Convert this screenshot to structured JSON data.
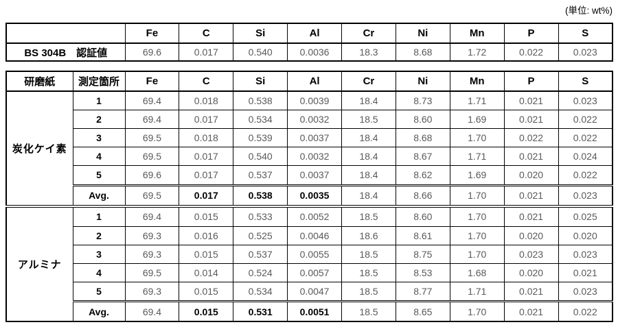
{
  "unit_label": "(単位: wt%)",
  "reference_table": {
    "columns": [
      "Fe",
      "C",
      "Si",
      "Al",
      "Cr",
      "Ni",
      "Mn",
      "P",
      "S"
    ],
    "row_label": "BS 304B　認証値",
    "values": [
      "69.6",
      "0.017",
      "0.540",
      "0.0036",
      "18.3",
      "8.68",
      "1.72",
      "0.022",
      "0.023"
    ]
  },
  "measurement_table": {
    "paper_header": "研磨紙",
    "location_header": "測定箇所",
    "columns": [
      "Fe",
      "C",
      "Si",
      "Al",
      "Cr",
      "Ni",
      "Mn",
      "P",
      "S"
    ],
    "avg_bold_columns": [
      1,
      2,
      3
    ],
    "sections": [
      {
        "paper": "炭化ケイ素",
        "rows": [
          {
            "label": "1",
            "avg": false,
            "values": [
              "69.4",
              "0.018",
              "0.538",
              "0.0039",
              "18.4",
              "8.73",
              "1.71",
              "0.021",
              "0.023"
            ]
          },
          {
            "label": "2",
            "avg": false,
            "values": [
              "69.4",
              "0.017",
              "0.534",
              "0.0032",
              "18.5",
              "8.60",
              "1.69",
              "0.021",
              "0.022"
            ]
          },
          {
            "label": "3",
            "avg": false,
            "values": [
              "69.5",
              "0.018",
              "0.539",
              "0.0037",
              "18.4",
              "8.68",
              "1.70",
              "0.022",
              "0.022"
            ]
          },
          {
            "label": "4",
            "avg": false,
            "values": [
              "69.5",
              "0.017",
              "0.540",
              "0.0032",
              "18.4",
              "8.67",
              "1.71",
              "0.021",
              "0.024"
            ]
          },
          {
            "label": "5",
            "avg": false,
            "values": [
              "69.6",
              "0.017",
              "0.537",
              "0.0037",
              "18.4",
              "8.62",
              "1.69",
              "0.020",
              "0.022"
            ]
          },
          {
            "label": "Avg.",
            "avg": true,
            "values": [
              "69.5",
              "0.017",
              "0.538",
              "0.0035",
              "18.4",
              "8.66",
              "1.70",
              "0.021",
              "0.023"
            ]
          }
        ]
      },
      {
        "paper": "アルミナ",
        "rows": [
          {
            "label": "1",
            "avg": false,
            "values": [
              "69.4",
              "0.015",
              "0.533",
              "0.0052",
              "18.5",
              "8.60",
              "1.70",
              "0.021",
              "0.025"
            ]
          },
          {
            "label": "2",
            "avg": false,
            "values": [
              "69.3",
              "0.016",
              "0.525",
              "0.0046",
              "18.6",
              "8.61",
              "1.70",
              "0.020",
              "0.020"
            ]
          },
          {
            "label": "3",
            "avg": false,
            "values": [
              "69.3",
              "0.015",
              "0.537",
              "0.0055",
              "18.5",
              "8.75",
              "1.70",
              "0.023",
              "0.023"
            ]
          },
          {
            "label": "4",
            "avg": false,
            "values": [
              "69.5",
              "0.014",
              "0.524",
              "0.0057",
              "18.5",
              "8.53",
              "1.68",
              "0.020",
              "0.021"
            ]
          },
          {
            "label": "5",
            "avg": false,
            "values": [
              "69.3",
              "0.015",
              "0.534",
              "0.0047",
              "18.5",
              "8.77",
              "1.71",
              "0.021",
              "0.023"
            ]
          },
          {
            "label": "Avg.",
            "avg": true,
            "values": [
              "69.4",
              "0.015",
              "0.531",
              "0.0051",
              "18.5",
              "8.65",
              "1.70",
              "0.021",
              "0.022"
            ]
          }
        ]
      }
    ]
  }
}
